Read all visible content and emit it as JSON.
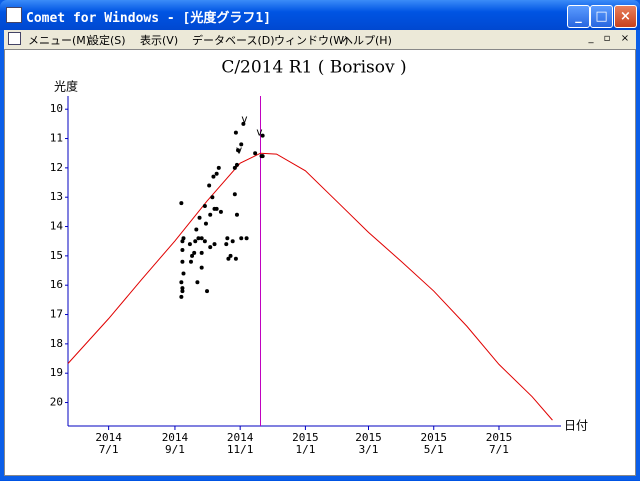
{
  "window": {
    "title": "Comet for Windows - [光度グラフ1]"
  },
  "menu": [
    "メニュー(M)",
    "設定(S)",
    "表示(V)",
    "データベース(D)",
    "ウィンドウ(W)",
    "ヘルプ(H)"
  ],
  "chart_data": {
    "type": "scatter",
    "title": "C/2014 R1 ( Borisov )",
    "y_label": "光度",
    "x_label": "日付",
    "xlim": [
      "2014-05-24",
      "2015-08-28"
    ],
    "ylim": [
      20.8,
      9.55
    ],
    "yticks": [
      10,
      11,
      12,
      13,
      14,
      15,
      16,
      17,
      18,
      19,
      20
    ],
    "xticks": [
      {
        "value": "2014-07-01",
        "label": [
          "2014",
          "7/1"
        ]
      },
      {
        "value": "2014-09-01",
        "label": [
          "2014",
          "9/1"
        ]
      },
      {
        "value": "2014-11-01",
        "label": [
          "2014",
          "11/1"
        ]
      },
      {
        "value": "2015-01-01",
        "label": [
          "2015",
          "1/1"
        ]
      },
      {
        "value": "2015-03-01",
        "label": [
          "2015",
          "3/1"
        ]
      },
      {
        "value": "2015-05-01",
        "label": [
          "2015",
          "5/1"
        ]
      },
      {
        "value": "2015-07-01",
        "label": [
          "2015",
          "7/1"
        ]
      }
    ],
    "axis_color": "#0000c0",
    "vlines": [
      {
        "x": "2014-11-20",
        "color": "#c000c0"
      }
    ],
    "series": [
      {
        "type": "line",
        "color": "#e00000",
        "x": [
          "2014-05-24",
          "2014-07-01",
          "2014-08-01",
          "2014-09-01",
          "2014-10-01",
          "2014-11-01",
          "2014-11-20",
          "2014-12-05",
          "2015-01-01",
          "2015-02-01",
          "2015-03-01",
          "2015-04-01",
          "2015-05-01",
          "2015-06-01",
          "2015-07-01",
          "2015-08-01",
          "2015-08-20"
        ],
        "values": [
          18.67,
          17.14,
          15.8,
          14.49,
          13.13,
          11.84,
          11.5,
          11.53,
          12.1,
          13.2,
          14.2,
          15.2,
          16.2,
          17.4,
          18.7,
          19.8,
          20.6
        ]
      },
      {
        "type": "scatter",
        "color": "#000000",
        "x": [
          "2014-09-07",
          "2014-09-09",
          "2014-09-08",
          "2014-09-08",
          "2014-09-08",
          "2014-09-09",
          "2014-09-07",
          "2014-09-08",
          "2014-09-08",
          "2014-09-07",
          "2014-09-15",
          "2014-09-17",
          "2014-09-16",
          "2014-09-19",
          "2014-09-21",
          "2014-09-20",
          "2014-09-23",
          "2014-09-22",
          "2014-09-24",
          "2014-09-26",
          "2014-09-26",
          "2014-09-26",
          "2014-09-29",
          "2014-09-30",
          "2014-09-29",
          "2014-10-01",
          "2014-10-03",
          "2014-10-04",
          "2014-10-04",
          "2014-10-06",
          "2014-10-07",
          "2014-10-08",
          "2014-10-08",
          "2014-10-10",
          "2014-10-10",
          "2014-10-12",
          "2014-10-14",
          "2014-10-19",
          "2014-10-21",
          "2014-10-20",
          "2014-10-23",
          "2014-10-25",
          "2014-10-27",
          "2014-10-27",
          "2014-10-29",
          "2014-10-28",
          "2014-10-30",
          "2014-10-28",
          "2014-10-29",
          "2014-11-02",
          "2014-11-02",
          "2014-11-04",
          "2014-11-07",
          "2014-11-15",
          "2014-11-21",
          "2014-11-22",
          "2014-11-22"
        ],
        "values": [
          13.2,
          14.4,
          14.5,
          14.8,
          15.2,
          15.6,
          15.9,
          16.1,
          16.2,
          16.4,
          14.6,
          15.0,
          15.2,
          14.9,
          14.1,
          14.5,
          14.4,
          15.9,
          13.7,
          14.4,
          14.9,
          15.4,
          13.3,
          13.9,
          14.5,
          16.2,
          12.6,
          13.6,
          14.7,
          13.0,
          12.3,
          13.4,
          14.6,
          12.2,
          13.4,
          12.0,
          13.5,
          14.6,
          15.1,
          14.4,
          15.0,
          14.5,
          12.9,
          12.0,
          11.9,
          10.8,
          11.4,
          15.1,
          13.6,
          11.2,
          14.4,
          10.5,
          14.4,
          11.5,
          11.6,
          10.9,
          11.6
        ]
      }
    ],
    "annotations": [
      {
        "text": "v",
        "x": "2014-11-05",
        "y": 10.35
      },
      {
        "text": "v",
        "x": "2014-10-31",
        "y": 11.4
      },
      {
        "text": "v",
        "x": "2014-11-19",
        "y": 10.8
      }
    ]
  }
}
